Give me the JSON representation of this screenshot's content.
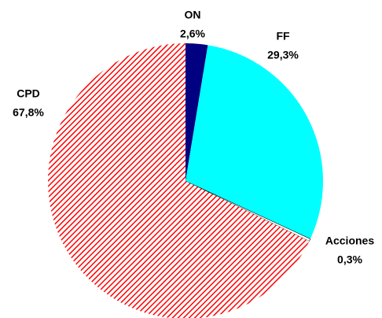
{
  "chart_data": {
    "type": "pie",
    "categories": [
      "ON",
      "FF",
      "Acciones",
      "CPD"
    ],
    "values": [
      2.6,
      29.3,
      0.3,
      67.8
    ],
    "value_labels": [
      "2,6%",
      "29,3%",
      "0,3%",
      "67,8%"
    ],
    "colors": [
      "#000080",
      "#00ffff",
      "#ffffff",
      "#ff0000"
    ],
    "hatched": [
      false,
      false,
      false,
      true
    ]
  }
}
